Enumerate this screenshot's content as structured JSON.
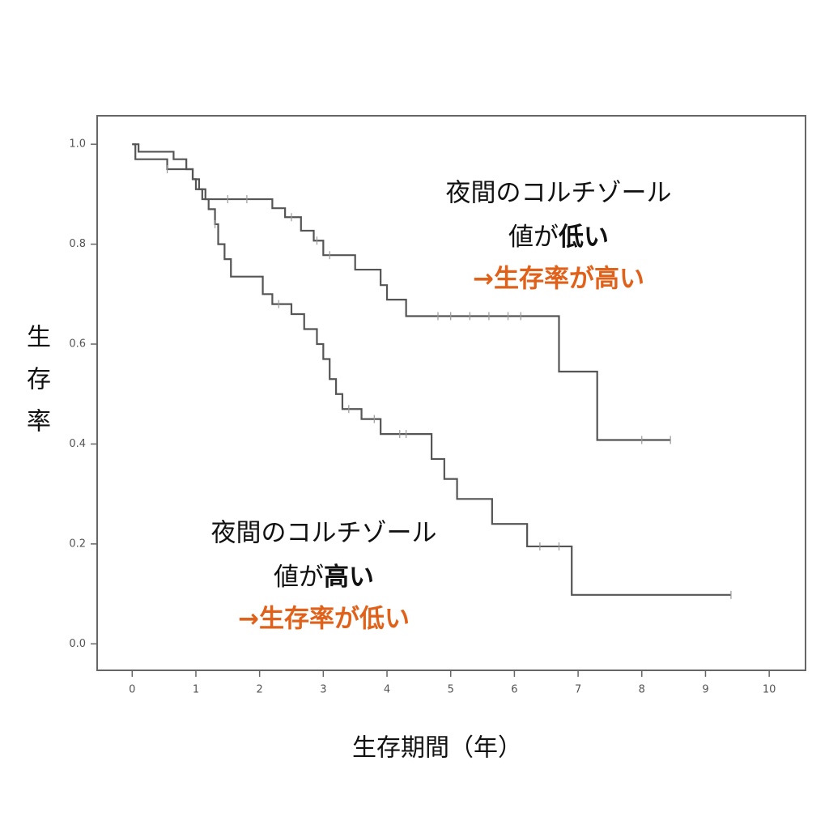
{
  "chart_data": {
    "type": "step",
    "x_label": "生存期間（年）",
    "y_label": "生存率",
    "xlim": [
      -0.55,
      10.57
    ],
    "ylim": [
      -0.053,
      1.057
    ],
    "xticks": [
      0,
      1,
      2,
      3,
      4,
      5,
      6,
      7,
      8,
      9,
      10
    ],
    "yticks": [
      {
        "value": 0,
        "label": "0.0"
      },
      0.2,
      0.4,
      0.6,
      0.8,
      {
        "value": 1,
        "label": "1.0"
      }
    ],
    "series": [
      {
        "color": "#555555",
        "x": [
          0,
          0.1,
          0.65,
          0.85,
          0.95,
          1.05,
          1.15,
          2.2,
          2.4,
          2.65,
          2.85,
          3.0,
          3.5,
          3.9,
          4.0,
          4.3,
          6.7,
          7.3,
          8.45
        ],
        "values": [
          1.0,
          0.985,
          0.97,
          0.95,
          0.93,
          0.91,
          0.89,
          0.872,
          0.854,
          0.827,
          0.807,
          0.778,
          0.749,
          0.718,
          0.689,
          0.656,
          0.545,
          0.408,
          0.408
        ],
        "censored": [
          1.5,
          1.8,
          2.5,
          2.9,
          3.1,
          4.8,
          5.0,
          5.3,
          5.6,
          5.9,
          6.1,
          8.0,
          8.45
        ]
      },
      {
        "color": "#555555",
        "x": [
          0,
          0.05,
          0.55,
          0.95,
          1.0,
          1.1,
          1.2,
          1.3,
          1.35,
          1.45,
          1.55,
          2.05,
          2.2,
          2.5,
          2.7,
          2.9,
          3.0,
          3.1,
          3.2,
          3.3,
          3.6,
          3.9,
          4.7,
          4.9,
          5.1,
          5.65,
          6.2,
          6.9,
          9.4
        ],
        "values": [
          1.0,
          0.97,
          0.95,
          0.93,
          0.91,
          0.89,
          0.87,
          0.84,
          0.8,
          0.77,
          0.735,
          0.7,
          0.68,
          0.66,
          0.63,
          0.6,
          0.57,
          0.53,
          0.5,
          0.47,
          0.45,
          0.42,
          0.37,
          0.33,
          0.29,
          0.24,
          0.195,
          0.098,
          0.098
        ],
        "censored": [
          0.55,
          1.3,
          2.3,
          3.4,
          3.8,
          4.2,
          4.3,
          6.4,
          6.7,
          9.4
        ]
      }
    ],
    "annotations": [
      {
        "line1": "夜間のコルチゾール",
        "line2": "値が",
        "line2_bold": "低い",
        "line3": "→生存率が高い"
      },
      {
        "line1": "夜間のコルチゾール",
        "line2": "値が",
        "line2_bold": "高い",
        "line3": "→生存率が低い"
      }
    ]
  }
}
